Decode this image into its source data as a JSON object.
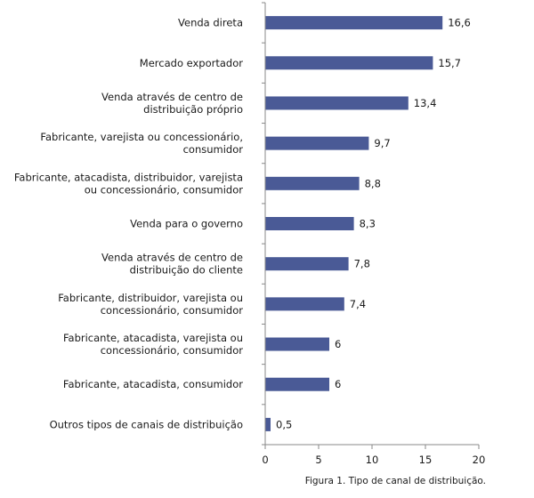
{
  "chart_data": {
    "type": "bar",
    "orientation": "horizontal",
    "categories": [
      "Venda direta",
      "Mercado exportador",
      "Venda através de centro de\ndistribuição próprio",
      "Fabricante, varejista ou concessionário,\nconsumidor",
      "Fabricante, atacadista, distribuidor, varejista\nou concessionário, consumidor",
      "Venda para o governo",
      "Venda através de centro de\ndistribuição do cliente",
      "Fabricante, distribuidor, varejista ou\nconcessionário, consumidor",
      "Fabricante, atacadista, varejista ou\nconcessionário, consumidor",
      "Fabricante, atacadista, consumidor",
      "Outros tipos de canais de distribuição"
    ],
    "values": [
      16.6,
      15.7,
      13.4,
      9.7,
      8.8,
      8.3,
      7.8,
      7.4,
      6,
      6,
      0.5
    ],
    "value_labels": [
      "16,6",
      "15,7",
      "13,4",
      "9,7",
      "8,8",
      "8,3",
      "7,8",
      "7,4",
      "6",
      "6",
      "0,5"
    ],
    "xlim": [
      0,
      20
    ],
    "xticks": [
      "0",
      "5",
      "10",
      "15",
      "20"
    ],
    "bar_color": "#4a5a96",
    "axis_color": "#888888",
    "grid": false
  },
  "caption": "Figura 1. Tipo de canal de distribuição."
}
